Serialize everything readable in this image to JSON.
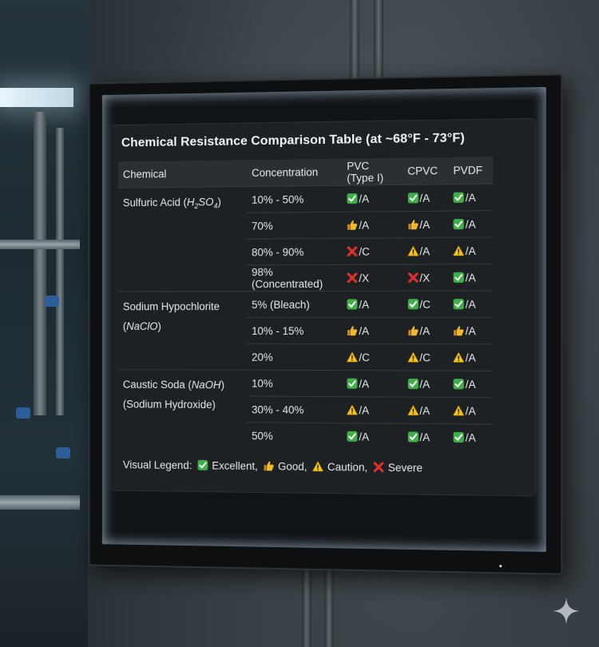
{
  "title": "Chemical Resistance Comparison Table (at ~68°F - 73°F)",
  "columns": {
    "chemical": "Chemical",
    "concentration": "Concentration",
    "pvc": "PVC (Type I)",
    "cpvc": "CPVC",
    "pvdf": "PVDF"
  },
  "groups": [
    {
      "chemical_label": "Sulfuric Acid (",
      "formula_main": "H",
      "formula_sub1": "2",
      "formula_mid": "SO",
      "formula_sub2": "4",
      "chemical_close": ")",
      "rows": [
        {
          "concentration": "10% - 50%",
          "pvc": {
            "icon": "check",
            "grade": "/A"
          },
          "cpvc": {
            "icon": "check",
            "grade": "/A"
          },
          "pvdf": {
            "icon": "check",
            "grade": "/A"
          }
        },
        {
          "concentration": "70%",
          "pvc": {
            "icon": "thumb",
            "grade": "/A"
          },
          "cpvc": {
            "icon": "thumb",
            "grade": "/A"
          },
          "pvdf": {
            "icon": "check",
            "grade": "/A"
          }
        },
        {
          "concentration": "80% - 90%",
          "pvc": {
            "icon": "x",
            "grade": "/C"
          },
          "cpvc": {
            "icon": "warning",
            "grade": "/A"
          },
          "pvdf": {
            "icon": "warning",
            "grade": "/A"
          }
        },
        {
          "concentration": "98% (Concentrated)",
          "pvc": {
            "icon": "x",
            "grade": "/X"
          },
          "cpvc": {
            "icon": "x",
            "grade": "/X"
          },
          "pvdf": {
            "icon": "check",
            "grade": "/A"
          }
        }
      ]
    },
    {
      "chemical_label": "Sodium Hypochlorite (",
      "formula": "NaClO",
      "chemical_close": ")",
      "rows": [
        {
          "concentration": "5% (Bleach)",
          "pvc": {
            "icon": "check",
            "grade": "/A"
          },
          "cpvc": {
            "icon": "check",
            "grade": "/C"
          },
          "pvdf": {
            "icon": "check",
            "grade": "/A"
          }
        },
        {
          "concentration": "10% - 15%",
          "pvc": {
            "icon": "thumb",
            "grade": "/A"
          },
          "cpvc": {
            "icon": "thumb",
            "grade": "/A"
          },
          "pvdf": {
            "icon": "thumb",
            "grade": "/A"
          }
        },
        {
          "concentration": "20%",
          "pvc": {
            "icon": "warning",
            "grade": "/C"
          },
          "cpvc": {
            "icon": "warning",
            "grade": "/C"
          },
          "pvdf": {
            "icon": "warning",
            "grade": "/A"
          }
        }
      ]
    },
    {
      "chemical_label": "Caustic Soda (",
      "formula": "NaOH",
      "chemical_close": ")",
      "chemical_line2": "(Sodium Hydroxide)",
      "rows": [
        {
          "concentration": "10%",
          "pvc": {
            "icon": "check",
            "grade": "/A"
          },
          "cpvc": {
            "icon": "check",
            "grade": "/A"
          },
          "pvdf": {
            "icon": "check",
            "grade": "/A"
          }
        },
        {
          "concentration": "30% - 40%",
          "pvc": {
            "icon": "warning",
            "grade": "/A"
          },
          "cpvc": {
            "icon": "warning",
            "grade": "/A"
          },
          "pvdf": {
            "icon": "warning",
            "grade": "/A"
          }
        },
        {
          "concentration": "50%",
          "pvc": {
            "icon": "check",
            "grade": "/A"
          },
          "cpvc": {
            "icon": "check",
            "grade": "/A"
          },
          "pvdf": {
            "icon": "check",
            "grade": "/A"
          }
        }
      ]
    }
  ],
  "legend": {
    "prefix": "Visual Legend:",
    "excellent": " Excellent,",
    "good": " Good,",
    "caution": " Caution,",
    "severe": " Severe"
  },
  "colors": {
    "check": "#3fae49",
    "thumb": "#f2b731",
    "warning": "#f5c518",
    "x": "#e0312b"
  }
}
